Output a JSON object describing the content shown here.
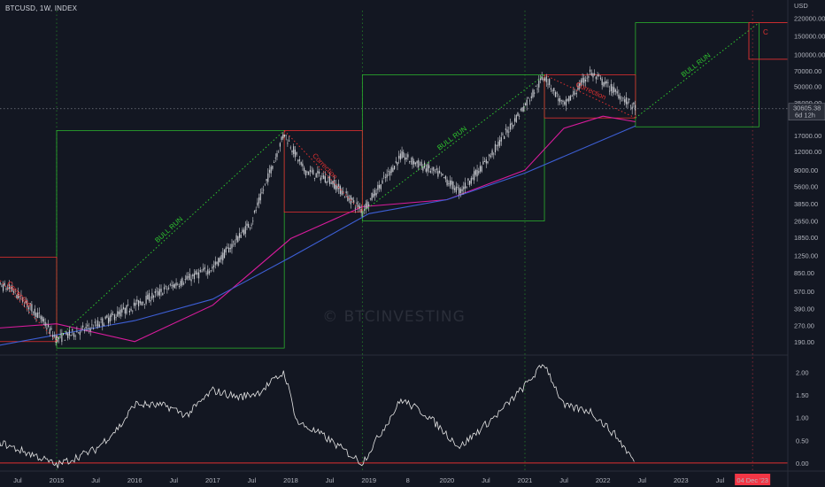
{
  "symbol": "BTCUSD, 1W, INDEX",
  "currency": "USD",
  "watermark": "© BTCINVESTING",
  "colors": {
    "background": "#131722",
    "candle": "#c8cad0",
    "ma_fast": "#d81b9c",
    "ma_slow": "#3d5fd6",
    "bull": "#2ec52e",
    "correction": "#e03030",
    "price_line": "#787b86",
    "oscillator": "#e6e6e6",
    "date_badge": "#f23645"
  },
  "price_axis": {
    "ticks": [
      "220000.00",
      "150000.00",
      "100000.00",
      "70000.00",
      "50000.00",
      "35000.00",
      "25000.00",
      "17000.00",
      "12000.00",
      "8000.00",
      "5600.00",
      "3850.00",
      "2650.00",
      "1850.00",
      "1250.00",
      "850.00",
      "570.00",
      "390.00",
      "270.00",
      "190.00"
    ],
    "current_price": "30605.38",
    "countdown": "6d 12h"
  },
  "osc_axis": {
    "ticks": [
      "2.00",
      "1.50",
      "1.00",
      "0.50",
      "0.00"
    ]
  },
  "time_axis": {
    "labels": [
      "Jul",
      "2015",
      "Jul",
      "2016",
      "Jul",
      "2017",
      "Jul",
      "2018",
      "Jul",
      "2019",
      "8",
      "2020",
      "Jul",
      "2021",
      "Jul",
      "2022",
      "Jul",
      "2023",
      "Jul"
    ],
    "highlight": "04 Dec '23"
  },
  "annotations": {
    "bull_run": "BULL RUN",
    "correction": "Correction",
    "cut_off": "C"
  },
  "chart_data": {
    "type": "candlestick",
    "title": "BTCUSD, 1W, INDEX",
    "y_scale": "log",
    "ylim": [
      150,
      260000
    ],
    "oscillator_ylim": [
      -0.1,
      2.3
    ],
    "price_path": [
      [
        "2014-02",
        700
      ],
      [
        "2014-06",
        600
      ],
      [
        "2014-10",
        350
      ],
      [
        "2015-01",
        200
      ],
      [
        "2015-07",
        270
      ],
      [
        "2016-01",
        420
      ],
      [
        "2016-07",
        650
      ],
      [
        "2017-01",
        950
      ],
      [
        "2017-07",
        2600
      ],
      [
        "2017-12",
        18000
      ],
      [
        "2018-03",
        8000
      ],
      [
        "2018-07",
        6500
      ],
      [
        "2018-12",
        3300
      ],
      [
        "2019-06",
        11000
      ],
      [
        "2019-12",
        7200
      ],
      [
        "2020-03",
        5000
      ],
      [
        "2020-07",
        9500
      ],
      [
        "2021-01",
        33000
      ],
      [
        "2021-04",
        63000
      ],
      [
        "2021-07",
        32000
      ],
      [
        "2021-11",
        67000
      ],
      [
        "2022-03",
        44000
      ],
      [
        "2022-06",
        30605
      ]
    ],
    "ma_fast_path": [
      [
        "2014-02",
        250
      ],
      [
        "2015-01",
        280
      ],
      [
        "2016-01",
        190
      ],
      [
        "2017-01",
        420
      ],
      [
        "2018-01",
        1800
      ],
      [
        "2018-12",
        3600
      ],
      [
        "2020-01",
        4200
      ],
      [
        "2021-01",
        8000
      ],
      [
        "2021-07",
        20000
      ],
      [
        "2022-01",
        26000
      ],
      [
        "2022-06",
        23000
      ]
    ],
    "ma_slow_path": [
      [
        "2014-03",
        170
      ],
      [
        "2016-01",
        300
      ],
      [
        "2017-01",
        480
      ],
      [
        "2018-01",
        1200
      ],
      [
        "2019-01",
        3100
      ],
      [
        "2020-01",
        4200
      ],
      [
        "2021-01",
        7500
      ],
      [
        "2022-06",
        21000
      ]
    ],
    "bull_runs": [
      {
        "start": [
          "2015-01",
          200
        ],
        "end": [
          "2017-12",
          19000
        ]
      },
      {
        "start": [
          "2018-12",
          3200
        ],
        "end": [
          "2021-04",
          64000
        ]
      },
      {
        "start": [
          "2022-06",
          25000
        ],
        "end": [
          "2024-01",
          200000
        ]
      }
    ],
    "corrections": [
      {
        "start": [
          "2014-01",
          1200
        ],
        "end": [
          "2015-01",
          190
        ]
      },
      {
        "start": [
          "2017-12",
          19000
        ],
        "end": [
          "2018-12",
          3200
        ]
      },
      {
        "start": [
          "2021-04",
          64000
        ],
        "end": [
          "2022-06",
          25000
        ]
      }
    ],
    "oscillator_path": [
      [
        "2014-03",
        0.55
      ],
      [
        "2014-06",
        0.35
      ],
      [
        "2014-10",
        0.15
      ],
      [
        "2015-01",
        -0.05
      ],
      [
        "2015-07",
        0.3
      ],
      [
        "2015-11",
        0.85
      ],
      [
        "2016-01",
        1.3
      ],
      [
        "2016-06",
        1.25
      ],
      [
        "2016-09",
        1.05
      ],
      [
        "2017-01",
        1.6
      ],
      [
        "2017-05",
        1.45
      ],
      [
        "2017-08",
        1.55
      ],
      [
        "2017-12",
        2.0
      ],
      [
        "2018-02",
        0.9
      ],
      [
        "2018-06",
        0.6
      ],
      [
        "2018-12",
        0.0
      ],
      [
        "2019-06",
        1.4
      ],
      [
        "2019-10",
        1.05
      ],
      [
        "2020-03",
        0.35
      ],
      [
        "2020-09",
        1.1
      ],
      [
        "2021-01",
        1.7
      ],
      [
        "2021-04",
        2.2
      ],
      [
        "2021-07",
        1.25
      ],
      [
        "2021-11",
        1.15
      ],
      [
        "2022-03",
        0.6
      ],
      [
        "2022-06",
        0.0
      ]
    ]
  }
}
